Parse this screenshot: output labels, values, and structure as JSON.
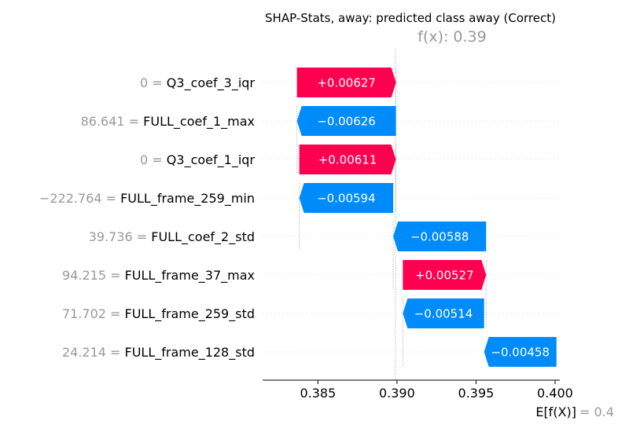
{
  "chart_data": {
    "type": "waterfall",
    "title": "SHAP-Stats, away: predicted class away (Correct)",
    "fx_label": "f(x): 0.39",
    "expected_label": "E[f(X)]",
    "expected_value_text": "= 0.4",
    "xlim": [
      0.3815,
      0.4003
    ],
    "x_ticks": [
      0.385,
      0.39,
      0.395,
      0.4
    ],
    "x_tick_labels": [
      "0.385",
      "0.390",
      "0.395",
      "0.400"
    ],
    "fx_value": 0.3899,
    "features": [
      {
        "value": "0",
        "name": "Q3_coef_3_iqr",
        "shap": 0.00627,
        "label": "+0.00627",
        "start": 0.38367,
        "end": 0.38994
      },
      {
        "value": "86.641",
        "name": "FULL_coef_1_max",
        "shap": -0.00626,
        "label": "−0.00626",
        "start": 0.38993,
        "end": 0.38367
      },
      {
        "value": "0",
        "name": "Q3_coef_1_iqr",
        "shap": 0.00611,
        "label": "+0.00611",
        "start": 0.38382,
        "end": 0.38993
      },
      {
        "value": "−222.764",
        "name": "FULL_frame_259_min",
        "shap": -0.00594,
        "label": "−0.00594",
        "start": 0.38976,
        "end": 0.38382
      },
      {
        "value": "39.736",
        "name": "FULL_coef_2_std",
        "shap": -0.00588,
        "label": "−0.00588",
        "start": 0.39564,
        "end": 0.38976
      },
      {
        "value": "94.215",
        "name": "FULL_frame_37_max",
        "shap": 0.00527,
        "label": "+0.00527",
        "start": 0.39037,
        "end": 0.39564
      },
      {
        "value": "71.702",
        "name": "FULL_frame_259_std",
        "shap": -0.00514,
        "label": "−0.00514",
        "start": 0.39551,
        "end": 0.39037
      },
      {
        "value": "24.214",
        "name": "FULL_frame_128_std",
        "shap": -0.00458,
        "label": "−0.00458",
        "start": 0.40009,
        "end": 0.39551
      }
    ],
    "colors": {
      "positive": "#ff0051",
      "negative": "#008bfb"
    }
  }
}
